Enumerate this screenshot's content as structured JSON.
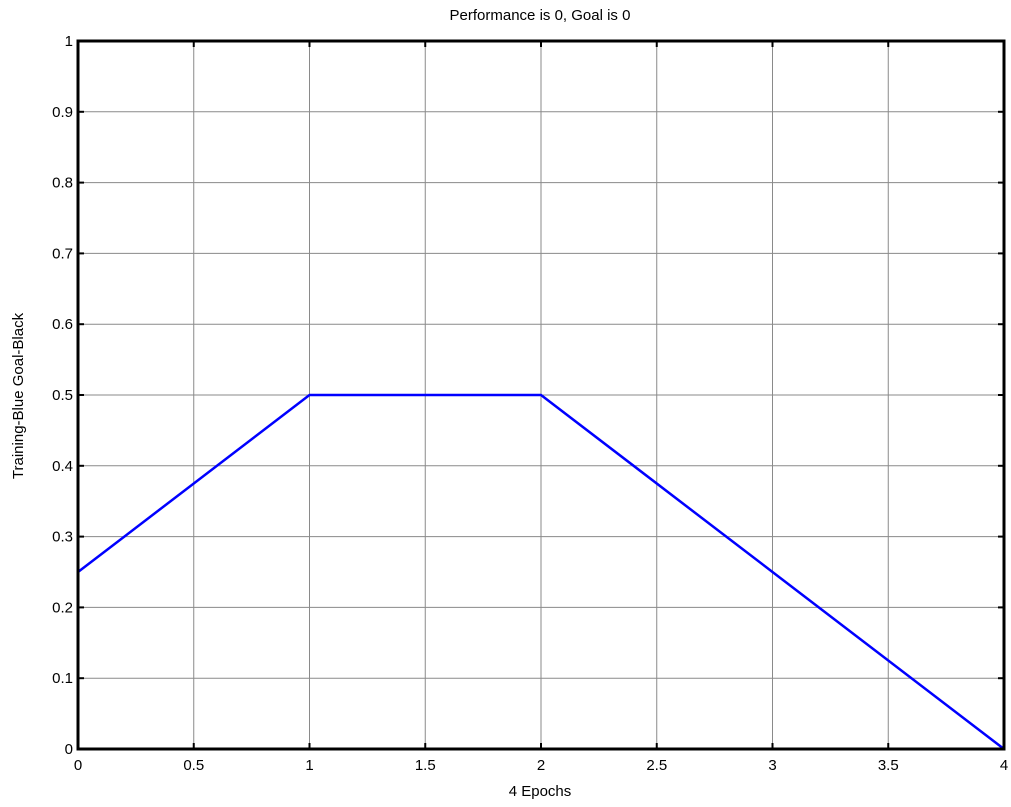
{
  "chart_data": {
    "type": "line",
    "title": "Performance is 0, Goal is 0",
    "xlabel": "4 Epochs",
    "ylabel": "Training-Blue  Goal-Black",
    "xlim": [
      0,
      4
    ],
    "ylim": [
      0,
      1
    ],
    "x_ticks": [
      0,
      0.5,
      1,
      1.5,
      2,
      2.5,
      3,
      3.5,
      4
    ],
    "x_tick_labels": [
      "0",
      "0.5",
      "1",
      "1.5",
      "2",
      "2.5",
      "3",
      "3.5",
      "4"
    ],
    "y_ticks": [
      0,
      0.1,
      0.2,
      0.3,
      0.4,
      0.5,
      0.6,
      0.7,
      0.8,
      0.9,
      1
    ],
    "y_tick_labels": [
      "0",
      "0.1",
      "0.2",
      "0.3",
      "0.4",
      "0.5",
      "0.6",
      "0.7",
      "0.8",
      "0.9",
      "1"
    ],
    "grid": true,
    "series": [
      {
        "color": "#0000ff",
        "x": [
          0,
          1,
          2,
          3,
          4
        ],
        "y": [
          0.25,
          0.5,
          0.5,
          0.25,
          0
        ]
      }
    ]
  }
}
